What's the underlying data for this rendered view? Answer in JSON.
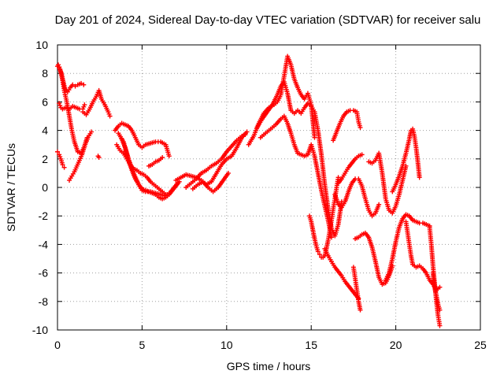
{
  "chart_data": {
    "type": "scatter",
    "title": "Day 201 of 2024, Sidereal Day-to-day VTEC variation (SDTVAR) for receiver salu",
    "xlabel": "GPS time / hours",
    "ylabel": "SDTVAR / TECUs",
    "xlim": [
      0,
      25
    ],
    "ylim": [
      -10,
      10
    ],
    "xticks": [
      0,
      5,
      10,
      15,
      20,
      25
    ],
    "yticks": [
      -10,
      -8,
      -6,
      -4,
      -2,
      0,
      2,
      4,
      6,
      8,
      10
    ],
    "xtick_labels": [
      "0",
      "5",
      "10",
      "15",
      "20",
      "25"
    ],
    "ytick_labels": [
      "-10",
      "-8",
      "-6",
      "-4",
      "-2",
      "0",
      "2",
      "4",
      "6",
      "8",
      "10"
    ],
    "grid": true,
    "marker": "plus",
    "color": "#ff0000",
    "series": [
      {
        "name": "s1",
        "x": [
          0.0,
          0.1,
          0.2,
          0.3,
          0.4,
          0.55,
          0.7,
          0.85,
          1.0,
          1.2,
          1.4,
          1.6,
          1.8,
          2.0
        ],
        "y": [
          8.5,
          8.4,
          8.1,
          7.5,
          6.8,
          6.0,
          5.0,
          4.0,
          3.2,
          2.5,
          2.4,
          2.9,
          3.5,
          3.9
        ]
      },
      {
        "name": "s2",
        "x": [
          0.05,
          0.15,
          0.25,
          0.35,
          0.45,
          0.6,
          0.75,
          0.9,
          1.05,
          1.2,
          1.4,
          1.55
        ],
        "y": [
          8.6,
          8.3,
          7.9,
          7.4,
          6.9,
          6.7,
          7.0,
          7.2,
          7.1,
          7.2,
          7.3,
          7.2
        ]
      },
      {
        "name": "s3",
        "x": [
          0.1,
          0.2,
          0.3,
          0.5,
          0.7,
          0.9,
          1.1,
          1.3,
          1.5,
          1.6
        ],
        "y": [
          5.9,
          5.6,
          5.5,
          5.6,
          5.5,
          5.7,
          5.6,
          5.5,
          5.5,
          5.8
        ]
      },
      {
        "name": "s4",
        "x": [
          0.0,
          0.1,
          0.2,
          0.3,
          0.4
        ],
        "y": [
          2.5,
          2.3,
          2.0,
          1.6,
          1.4
        ]
      },
      {
        "name": "s5",
        "x": [
          0.7,
          0.85,
          1.0,
          1.15,
          1.3,
          1.45,
          1.6,
          1.75
        ],
        "y": [
          0.5,
          0.8,
          1.1,
          1.5,
          1.9,
          2.3,
          2.9,
          3.5
        ]
      },
      {
        "name": "s6",
        "x": [
          1.5,
          1.7,
          1.9,
          2.1,
          2.3,
          2.45,
          2.6,
          2.8,
          3.0,
          3.1
        ],
        "y": [
          5.3,
          5.1,
          5.5,
          6.0,
          6.4,
          6.8,
          6.2,
          5.8,
          5.3,
          5.0
        ]
      },
      {
        "name": "s7",
        "x": [
          2.4,
          2.45
        ],
        "y": [
          2.2,
          2.1
        ]
      },
      {
        "name": "s8",
        "x": [
          3.4,
          3.6,
          3.8,
          4.0,
          4.2,
          4.4,
          4.6,
          4.8,
          5.0,
          5.2,
          5.5,
          5.8,
          6.1,
          6.4,
          6.6
        ],
        "y": [
          4.0,
          4.3,
          4.5,
          4.4,
          4.3,
          4.0,
          3.5,
          3.0,
          2.8,
          3.0,
          3.1,
          3.2,
          3.2,
          3.0,
          2.2
        ]
      },
      {
        "name": "s9",
        "x": [
          3.5,
          3.7,
          3.9,
          4.1,
          4.3,
          4.5,
          4.7,
          4.9,
          5.1,
          5.3,
          5.5,
          5.8,
          6.1,
          6.4
        ],
        "y": [
          3.0,
          2.6,
          2.4,
          2.0,
          1.6,
          1.3,
          1.2,
          1.0,
          0.9,
          0.7,
          0.4,
          0.1,
          -0.2,
          -0.5
        ]
      },
      {
        "name": "s10",
        "x": [
          3.6,
          3.9,
          4.2,
          4.5,
          4.8,
          5.0,
          5.2,
          5.5,
          5.8,
          6.1,
          6.4,
          6.7,
          6.9,
          7.1
        ],
        "y": [
          3.8,
          3.2,
          2.0,
          1.0,
          0.2,
          -0.2,
          -0.3,
          -0.3,
          -0.4,
          -0.5,
          -0.6,
          -0.3,
          0.0,
          0.3
        ]
      },
      {
        "name": "s11",
        "x": [
          3.8,
          4.0,
          4.2,
          4.4,
          4.6,
          4.8,
          5.0,
          5.2,
          5.4,
          5.6,
          5.8,
          6.0,
          6.2,
          6.4,
          6.6,
          6.8,
          7.0,
          7.2
        ],
        "y": [
          3.4,
          2.8,
          1.9,
          1.2,
          0.6,
          0.2,
          -0.1,
          -0.2,
          -0.3,
          -0.4,
          -0.5,
          -0.7,
          -0.8,
          -0.7,
          -0.5,
          -0.2,
          0.1,
          0.4
        ]
      },
      {
        "name": "s12",
        "x": [
          5.4,
          5.6,
          5.8,
          6.0,
          6.2
        ],
        "y": [
          1.5,
          1.6,
          1.8,
          1.9,
          2.1
        ]
      },
      {
        "name": "s13",
        "x": [
          7.0,
          7.3,
          7.6,
          7.9,
          8.2,
          8.5,
          8.8,
          9.1,
          9.4,
          9.7,
          10.0,
          10.3,
          10.6,
          10.9,
          11.2
        ],
        "y": [
          0.5,
          0.7,
          0.9,
          0.8,
          0.7,
          0.5,
          0.2,
          0.4,
          1.0,
          1.6,
          2.0,
          2.2,
          2.8,
          3.5,
          3.9
        ]
      },
      {
        "name": "s14",
        "x": [
          7.6,
          7.9,
          8.2,
          8.5,
          8.8,
          9.1,
          9.4,
          9.7,
          10.0,
          10.3,
          10.6,
          10.9,
          11.1
        ],
        "y": [
          0.0,
          0.3,
          0.6,
          1.0,
          1.2,
          1.5,
          1.7,
          2.0,
          2.5,
          2.9,
          3.3,
          3.6,
          3.7
        ]
      },
      {
        "name": "s15",
        "x": [
          8.0,
          8.3,
          8.6,
          8.9,
          9.2,
          9.5,
          9.8,
          10.1
        ],
        "y": [
          -0.1,
          0.2,
          0.4,
          0.0,
          -0.3,
          0.0,
          0.5,
          1.0
        ]
      },
      {
        "name": "s16",
        "x": [
          11.3,
          11.6,
          11.9,
          12.2,
          12.5,
          12.8,
          13.0,
          13.2,
          13.4,
          13.6,
          13.8,
          14.0,
          14.2,
          14.4,
          14.6,
          14.8,
          15.0,
          15.2
        ],
        "y": [
          3.0,
          3.6,
          4.5,
          5.2,
          5.6,
          5.8,
          6.0,
          6.5,
          7.8,
          9.2,
          8.6,
          7.6,
          7.0,
          6.5,
          6.2,
          6.6,
          5.8,
          3.5
        ]
      },
      {
        "name": "s17",
        "x": [
          11.8,
          12.1,
          12.4,
          12.7,
          13.0,
          13.2,
          13.4,
          13.6,
          13.8,
          14.0,
          14.2,
          14.4,
          14.6,
          14.8,
          15.0,
          15.2,
          15.4,
          15.6,
          15.8,
          16.0,
          16.2,
          16.4,
          16.6,
          16.8
        ],
        "y": [
          4.2,
          4.8,
          5.3,
          5.8,
          6.5,
          7.1,
          7.4,
          6.6,
          5.4,
          5.2,
          5.4,
          5.2,
          5.6,
          5.9,
          5.7,
          5.3,
          4.0,
          2.3,
          0.2,
          -1.5,
          -2.9,
          -3.4,
          -2.6,
          -1.0
        ]
      },
      {
        "name": "s18",
        "x": [
          12.0,
          12.3,
          12.6,
          12.9,
          13.2,
          13.4,
          13.6,
          13.8,
          14.0,
          14.2,
          14.4,
          14.6,
          14.8,
          15.0,
          15.2,
          15.4,
          15.6,
          15.8,
          16.0,
          16.2
        ],
        "y": [
          3.5,
          3.8,
          4.1,
          4.4,
          4.8,
          5.0,
          4.5,
          3.8,
          3.0,
          2.4,
          2.3,
          2.2,
          2.3,
          3.0,
          2.2,
          1.0,
          -0.2,
          -1.3,
          -2.3,
          -3.5
        ]
      },
      {
        "name": "s19",
        "x": [
          14.9,
          15.0,
          15.1,
          15.2,
          15.3,
          15.4,
          15.5,
          15.6,
          15.7,
          15.8,
          15.9,
          16.0,
          16.1,
          16.2,
          16.3,
          16.4,
          16.5,
          16.6
        ],
        "y": [
          -2.0,
          -2.4,
          -3.0,
          -3.6,
          -4.1,
          -4.5,
          -4.7,
          -4.9,
          -4.9,
          -4.8,
          -4.3,
          -3.7,
          -3.0,
          -2.3,
          -1.5,
          -0.8,
          0.0,
          0.7
        ]
      },
      {
        "name": "s20",
        "x": [
          15.8,
          16.0,
          16.2,
          16.4,
          16.6,
          16.8,
          17.0,
          17.2,
          17.4,
          17.6,
          17.8
        ],
        "y": [
          -4.3,
          -4.8,
          -5.2,
          -5.6,
          -5.9,
          -6.2,
          -6.6,
          -6.9,
          -7.2,
          -7.5,
          -7.8
        ]
      },
      {
        "name": "s21",
        "x": [
          16.6,
          16.8,
          17.0,
          17.2,
          17.4,
          17.6,
          17.8,
          18.0
        ],
        "y": [
          0.3,
          0.6,
          1.0,
          1.4,
          1.7,
          2.0,
          2.2,
          2.3
        ]
      },
      {
        "name": "s22",
        "x": [
          16.3,
          16.5,
          16.7,
          16.9,
          17.1,
          17.3,
          17.5,
          17.7,
          17.8,
          17.9
        ],
        "y": [
          3.3,
          3.9,
          4.5,
          5.0,
          5.3,
          5.4,
          5.4,
          5.3,
          4.6,
          4.2
        ]
      },
      {
        "name": "s23",
        "x": [
          16.4,
          16.6,
          16.8,
          17.0,
          17.2,
          17.4,
          17.6,
          17.8,
          18.0,
          18.2,
          18.4,
          18.6,
          18.8,
          19.0
        ],
        "y": [
          -0.5,
          -1.2,
          -1.4,
          -1.0,
          -0.3,
          0.3,
          0.6,
          0.6,
          0.1,
          -0.8,
          -1.6,
          -2.0,
          -1.8,
          -1.2
        ]
      },
      {
        "name": "s24",
        "x": [
          17.6,
          17.8,
          18.0,
          18.2,
          18.4,
          18.6,
          18.8,
          19.0,
          19.2,
          19.4,
          19.6,
          19.8
        ],
        "y": [
          -3.6,
          -3.5,
          -3.3,
          -3.2,
          -3.5,
          -4.2,
          -5.2,
          -6.3,
          -6.8,
          -6.7,
          -6.2,
          -5.5
        ]
      },
      {
        "name": "s25",
        "x": [
          17.5,
          17.6,
          17.7,
          17.8,
          17.9
        ],
        "y": [
          -5.6,
          -6.4,
          -7.2,
          -8.0,
          -8.6
        ]
      },
      {
        "name": "s26",
        "x": [
          18.4,
          18.6,
          18.8,
          19.0,
          19.2,
          19.4,
          19.6,
          19.8,
          20.0,
          20.2,
          20.4,
          20.6
        ],
        "y": [
          1.8,
          1.7,
          1.9,
          2.4,
          1.0,
          -0.8,
          -1.6,
          -1.8,
          -1.3,
          -0.5,
          0.5,
          1.5
        ]
      },
      {
        "name": "s27",
        "x": [
          19.8,
          20.0,
          20.2,
          20.4,
          20.6,
          20.8,
          20.9,
          21.0,
          21.1,
          21.2,
          21.3,
          21.4
        ],
        "y": [
          -0.3,
          0.2,
          0.8,
          1.5,
          2.4,
          3.4,
          4.0,
          4.1,
          3.6,
          2.8,
          1.8,
          0.7
        ]
      },
      {
        "name": "s28",
        "x": [
          19.4,
          19.6,
          19.8,
          20.0,
          20.2,
          20.4,
          20.6,
          20.8,
          21.0,
          21.2,
          21.4,
          21.6,
          21.8,
          22.0
        ],
        "y": [
          -6.5,
          -6.0,
          -5.0,
          -3.8,
          -2.8,
          -2.2,
          -1.9,
          -2.0,
          -2.3,
          -2.4,
          -2.5,
          -2.5,
          -2.6,
          -2.7
        ]
      },
      {
        "name": "s29",
        "x": [
          20.6,
          20.7,
          20.8,
          20.9,
          21.0,
          21.2,
          21.4,
          21.6,
          21.8,
          22.0,
          22.2,
          22.4,
          22.6
        ],
        "y": [
          -2.4,
          -3.2,
          -4.0,
          -4.8,
          -5.4,
          -5.6,
          -5.5,
          -5.7,
          -6.0,
          -6.5,
          -6.8,
          -7.2,
          -7.0
        ]
      },
      {
        "name": "s30",
        "x": [
          22.0,
          22.1,
          22.2,
          22.3,
          22.4,
          22.5,
          22.6
        ],
        "y": [
          -2.8,
          -4.0,
          -5.5,
          -6.8,
          -8.0,
          -9.0,
          -9.7
        ]
      },
      {
        "name": "s31",
        "x": [
          22.2,
          22.3,
          22.4,
          22.5,
          22.6
        ],
        "y": [
          -6.0,
          -7.0,
          -7.6,
          -8.2,
          -8.6
        ]
      }
    ]
  }
}
